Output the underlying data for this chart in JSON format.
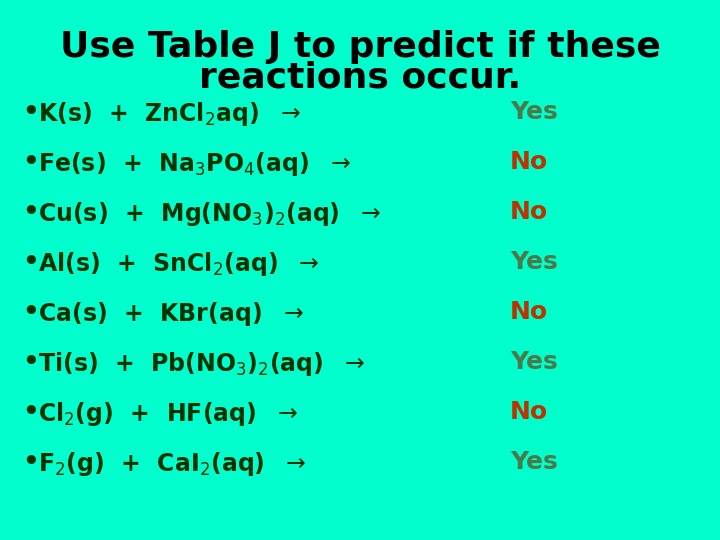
{
  "background_color": "#00FFCC",
  "title_line1": "Use Table J to predict if these",
  "title_line2": "reactions occur.",
  "title_color": "#000000",
  "title_fontsize": 26,
  "bullet_color": "#1a1a00",
  "reaction_color": "#003300",
  "reaction_fontsize": 17,
  "answer_fontsize": 17,
  "reactions": [
    {
      "text": "K(s)  +  ZnCl$_2$aq)  $\\rightarrow$",
      "answer": "Yes",
      "answer_color": "#4a7a4a"
    },
    {
      "text": "Fe(s)  +  Na$_3$PO$_4$(aq)  $\\rightarrow$",
      "answer": "No",
      "answer_color": "#bb3300"
    },
    {
      "text": "Cu(s)  +  Mg(NO$_3$)$_2$(aq)  $\\rightarrow$",
      "answer": "No",
      "answer_color": "#bb3300"
    },
    {
      "text": "Al(s)  +  SnCl$_2$(aq)  $\\rightarrow$",
      "answer": "Yes",
      "answer_color": "#4a7a4a"
    },
    {
      "text": "Ca(s)  +  KBr(aq)  $\\rightarrow$",
      "answer": "No",
      "answer_color": "#bb3300"
    },
    {
      "text": "Ti(s)  +  Pb(NO$_3$)$_2$(aq)  $\\rightarrow$",
      "answer": "Yes",
      "answer_color": "#4a7a4a"
    },
    {
      "text": "Cl$_2$(g)  +  HF(aq)  $\\rightarrow$",
      "answer": "No",
      "answer_color": "#bb3300"
    },
    {
      "text": "F$_2$(g)  +  CaI$_2$(aq)  $\\rightarrow$",
      "answer": "Yes",
      "answer_color": "#4a7a4a"
    }
  ]
}
